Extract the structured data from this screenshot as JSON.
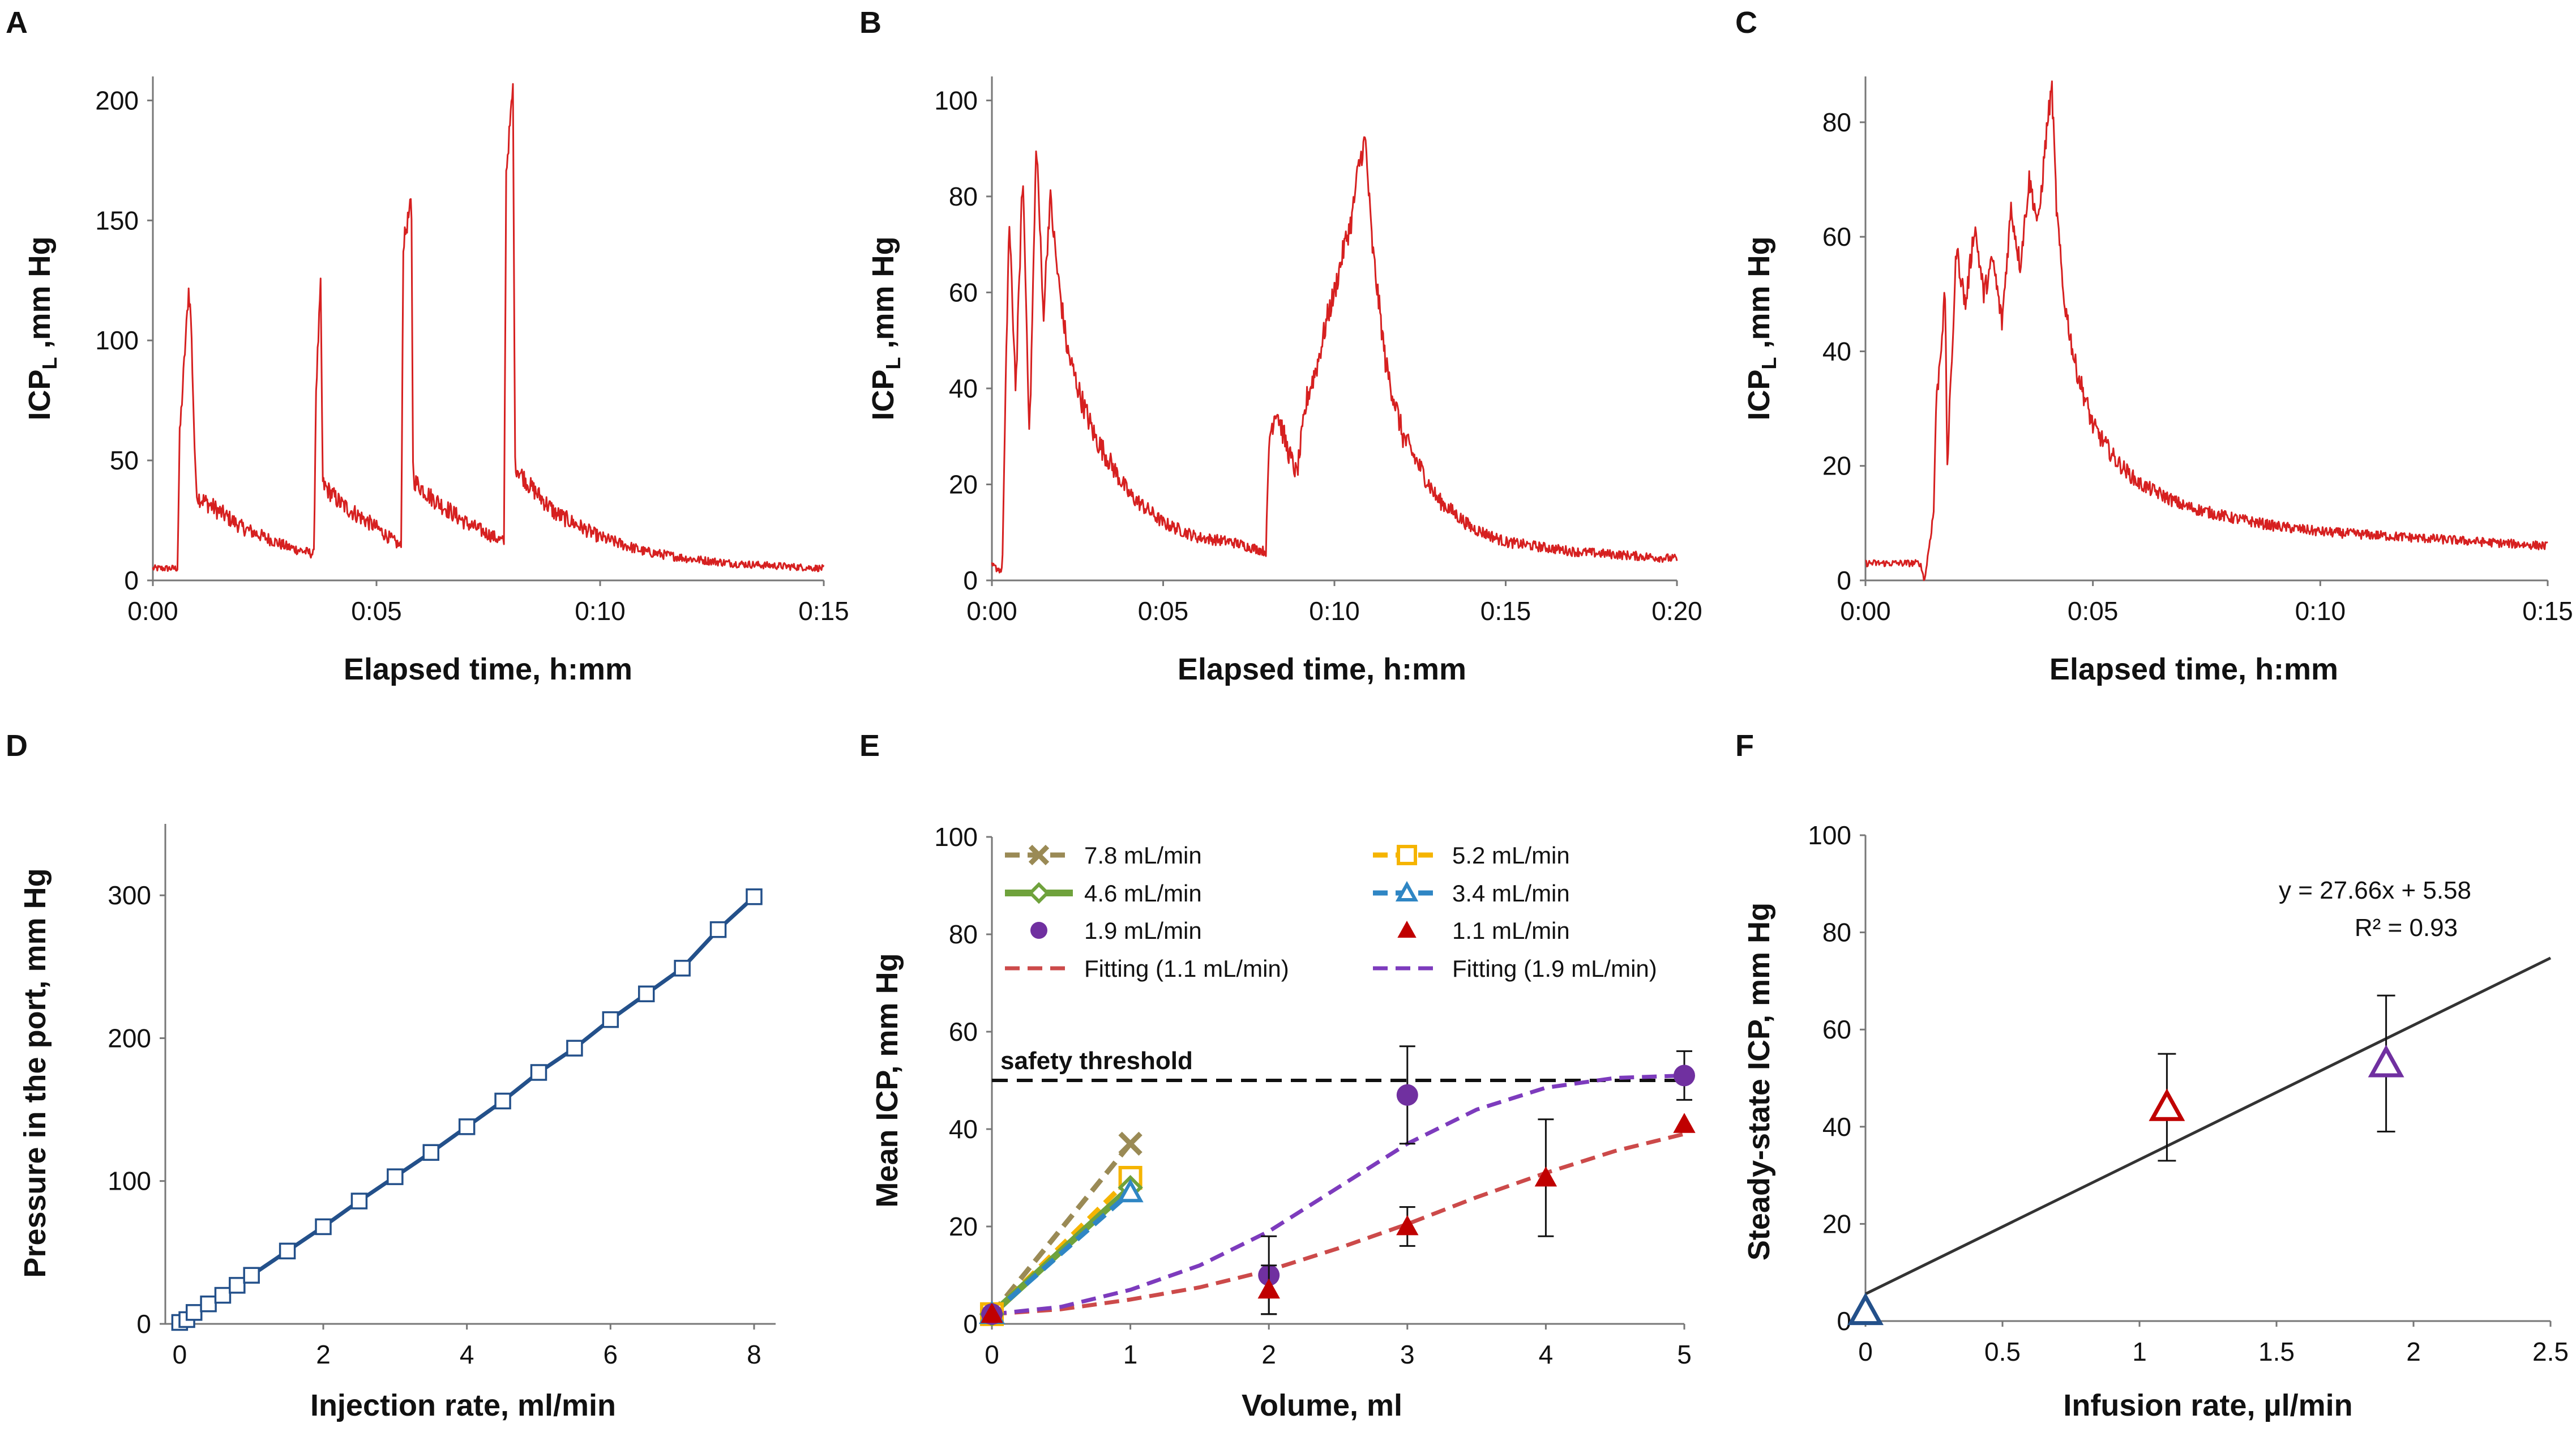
{
  "colors": {
    "trace_red": "#d62020",
    "navy": "#23508a",
    "olive": "#9a8a55",
    "yellow": "#f5b400",
    "green": "#6fa23c",
    "blue": "#2f86c4",
    "purple": "#7030a0",
    "dark_red": "#c00000",
    "fit_red": "#cc4a4a",
    "fit_purple": "#7d3bbd",
    "black": "#111111"
  },
  "chart_data": [
    {
      "id": "A",
      "panel_label": "A",
      "type": "line",
      "xlabel": "Elapsed time, h:mm",
      "ylabel_main": "ICP",
      "ylabel_sub": "L",
      "ylabel_tail": " ,mm Hg",
      "xlim": [
        0,
        15
      ],
      "ylim": [
        0,
        210
      ],
      "xticks": [
        0,
        5,
        10,
        15
      ],
      "xtick_labels": [
        "0:00",
        "0:05",
        "0:10",
        "0:15"
      ],
      "yticks": [
        0,
        50,
        100,
        150,
        200
      ],
      "ytick_labels": [
        "0",
        "50",
        "100",
        "150",
        "200"
      ],
      "series": [
        {
          "name": "ICPL",
          "x": [
            0,
            0.55,
            0.6,
            0.8,
            0.85,
            0.95,
            1.0,
            2.0,
            3.0,
            3.6,
            3.65,
            3.75,
            3.8,
            4.2,
            5.0,
            5.55,
            5.6,
            5.78,
            5.82,
            6.2,
            7.0,
            7.85,
            7.9,
            8.05,
            8.1,
            8.4,
            9.0,
            10.0,
            11.0,
            12.0,
            13.0,
            14.0,
            15.0
          ],
          "y": [
            5,
            5,
            60,
            121,
            110,
            45,
            35,
            22,
            14,
            11,
            80,
            122,
            40,
            32,
            22,
            14,
            140,
            158,
            42,
            35,
            24,
            16,
            170,
            205,
            48,
            40,
            28,
            18,
            12,
            9,
            7,
            6,
            5
          ],
          "noise_amplitude": 3
        }
      ]
    },
    {
      "id": "B",
      "panel_label": "B",
      "type": "line",
      "xlabel": "Elapsed time, h:mm",
      "ylabel_main": "ICP",
      "ylabel_sub": "L",
      "ylabel_tail": " ,mm Hg",
      "xlim": [
        0,
        20
      ],
      "ylim": [
        0,
        105
      ],
      "xticks": [
        0,
        5,
        10,
        15,
        20
      ],
      "xtick_labels": [
        "0:00",
        "0:05",
        "0:10",
        "0:15",
        "0:20"
      ],
      "yticks": [
        0,
        20,
        40,
        60,
        80,
        100
      ],
      "ytick_labels": [
        "0",
        "20",
        "40",
        "60",
        "80",
        "100"
      ],
      "series": [
        {
          "name": "ICPL",
          "x": [
            0,
            0.3,
            0.5,
            0.7,
            0.9,
            1.1,
            1.3,
            1.5,
            1.7,
            1.9,
            2.2,
            2.6,
            3.0,
            4.0,
            5.0,
            6.0,
            7.0,
            8.0,
            8.1,
            8.3,
            8.6,
            8.9,
            9.2,
            9.5,
            9.8,
            10.0,
            10.3,
            10.5,
            10.7,
            10.9,
            11.1,
            11.5,
            12.0,
            13.0,
            14.0,
            15.0,
            16.0,
            17.0,
            18.0,
            19.0,
            20.0
          ],
          "y": [
            3,
            2,
            75,
            40,
            85,
            30,
            92,
            55,
            80,
            65,
            48,
            38,
            30,
            18,
            12,
            9,
            8,
            6,
            30,
            36,
            28,
            22,
            38,
            45,
            55,
            60,
            70,
            75,
            86,
            92,
            70,
            45,
            30,
            17,
            11,
            8,
            7,
            6,
            5.5,
            5,
            4.5
          ],
          "noise_amplitude": 2
        }
      ]
    },
    {
      "id": "C",
      "panel_label": "C",
      "type": "line",
      "xlabel": "Elapsed time, h:mm",
      "ylabel_main": "ICP",
      "ylabel_sub": "L",
      "ylabel_tail": " ,mm Hg",
      "xlim": [
        0,
        15
      ],
      "ylim": [
        0,
        88
      ],
      "xticks": [
        0,
        5,
        10,
        15
      ],
      "xtick_labels": [
        "0:00",
        "0:05",
        "0:10",
        "0:15"
      ],
      "yticks": [
        0,
        20,
        40,
        60,
        80
      ],
      "ytick_labels": [
        "0",
        "20",
        "40",
        "60",
        "80"
      ],
      "series": [
        {
          "name": "ICPL",
          "x": [
            0,
            1.2,
            1.3,
            1.5,
            1.55,
            1.75,
            1.8,
            2.0,
            2.2,
            2.4,
            2.6,
            2.8,
            3.0,
            3.2,
            3.4,
            3.6,
            3.8,
            4.0,
            4.1,
            4.2,
            4.35,
            4.6,
            5.0,
            5.5,
            6.0,
            7.0,
            8.0,
            9.0,
            10.0,
            11.0,
            12.0,
            13.0,
            14.0,
            15.0
          ],
          "y": [
            3,
            3,
            0,
            12,
            30,
            50,
            20,
            58,
            48,
            62,
            50,
            56,
            45,
            65,
            55,
            70,
            62,
            80,
            86,
            65,
            50,
            38,
            27,
            21,
            17,
            13,
            11,
            9.5,
            8.5,
            8,
            7.5,
            7,
            6.5,
            6
          ],
          "noise_amplitude": 1.5
        }
      ]
    },
    {
      "id": "D",
      "panel_label": "D",
      "type": "line",
      "xlabel": "Injection rate, ml/min",
      "ylabel": "Pressure in the port, mm Hg",
      "xlim": [
        -0.2,
        8.3
      ],
      "ylim": [
        0,
        350
      ],
      "xticks": [
        0,
        2,
        4,
        6,
        8
      ],
      "xtick_labels": [
        "0",
        "2",
        "4",
        "6",
        "8"
      ],
      "yticks": [
        0,
        100,
        200,
        300
      ],
      "ytick_labels": [
        "0",
        "100",
        "200",
        "300"
      ],
      "series": [
        {
          "name": "port pressure",
          "x": [
            0,
            0.1,
            0.2,
            0.4,
            0.6,
            0.8,
            1.0,
            1.5,
            2.0,
            2.5,
            3.0,
            3.5,
            4.0,
            4.5,
            5.0,
            5.5,
            6.0,
            6.5,
            7.0,
            7.5,
            8.0
          ],
          "y": [
            1,
            3,
            8,
            14,
            20,
            27,
            34,
            51,
            68,
            86,
            103,
            120,
            138,
            156,
            176,
            193,
            213,
            231,
            249,
            276,
            299
          ]
        }
      ]
    },
    {
      "id": "E",
      "panel_label": "E",
      "type": "scatter",
      "xlabel": "Volume, ml",
      "ylabel": "Mean ICP, mm Hg",
      "xlim": [
        0,
        5
      ],
      "ylim": [
        0,
        100
      ],
      "xticks": [
        0,
        1,
        2,
        3,
        4,
        5
      ],
      "xtick_labels": [
        "0",
        "1",
        "2",
        "3",
        "4",
        "5"
      ],
      "yticks": [
        0,
        20,
        40,
        60,
        80,
        100
      ],
      "ytick_labels": [
        "0",
        "20",
        "40",
        "60",
        "80",
        "100"
      ],
      "threshold": {
        "value": 50,
        "label": "safety threshold"
      },
      "series": [
        {
          "name": "7.8 mL/min",
          "marker": "x",
          "x": [
            0,
            1
          ],
          "y": [
            2,
            37
          ]
        },
        {
          "name": "5.2 mL/min",
          "marker": "square",
          "x": [
            0,
            1
          ],
          "y": [
            2,
            30
          ]
        },
        {
          "name": "4.6 mL/min",
          "marker": "diamond",
          "x": [
            0,
            1
          ],
          "y": [
            2,
            28
          ]
        },
        {
          "name": "3.4 mL/min",
          "marker": "triangle",
          "x": [
            0,
            1
          ],
          "y": [
            2,
            27
          ]
        },
        {
          "name": "1.9 mL/min",
          "marker": "circle",
          "x": [
            0,
            2,
            3,
            5
          ],
          "y": [
            2,
            10,
            47,
            51
          ],
          "err": [
            0,
            8,
            10,
            5
          ]
        },
        {
          "name": "1.1 mL/min",
          "marker": "triangle-filled",
          "x": [
            0,
            2,
            3,
            4,
            5
          ],
          "y": [
            2,
            7,
            20,
            30,
            41
          ],
          "err": [
            0,
            5,
            4,
            12,
            0
          ]
        },
        {
          "name": "Fitting (1.1 mL/min)",
          "marker": "none",
          "x": [
            0,
            0.5,
            1,
            1.5,
            2,
            2.5,
            3,
            3.5,
            4,
            4.5,
            5
          ],
          "y": [
            2,
            3,
            5,
            7.5,
            11,
            15.5,
            20.5,
            26,
            31,
            35.5,
            39
          ]
        },
        {
          "name": "Fitting (1.9 mL/min)",
          "marker": "none",
          "x": [
            0,
            0.5,
            1,
            1.5,
            2,
            2.5,
            3,
            3.5,
            4,
            4.5,
            5
          ],
          "y": [
            2,
            3.5,
            7,
            12,
            19,
            28,
            37,
            44,
            48.5,
            50.5,
            51
          ]
        }
      ]
    },
    {
      "id": "F",
      "panel_label": "F",
      "type": "scatter",
      "xlabel": "Infusion rate, µl/min",
      "ylabel": "Steady-state ICP, mm Hg",
      "xlim": [
        0,
        2.5
      ],
      "ylim": [
        0,
        100
      ],
      "xticks": [
        0,
        0.5,
        1,
        1.5,
        2,
        2.5
      ],
      "xtick_labels": [
        "0",
        "0.5",
        "1",
        "1.5",
        "2",
        "2.5"
      ],
      "yticks": [
        0,
        20,
        40,
        60,
        80,
        100
      ],
      "ytick_labels": [
        "0",
        "20",
        "40",
        "60",
        "80",
        "100"
      ],
      "points": [
        {
          "x": 0,
          "y": 2,
          "err": 0,
          "color": "navy"
        },
        {
          "x": 1.1,
          "y": 44,
          "err": 11,
          "color": "dark_red"
        },
        {
          "x": 1.9,
          "y": 53,
          "err": 14,
          "color": "purple"
        }
      ],
      "fit": {
        "slope": 27.66,
        "intercept": 5.58
      },
      "equation": "y = 27.66x + 5.58",
      "r2": "R² = 0.93"
    }
  ]
}
